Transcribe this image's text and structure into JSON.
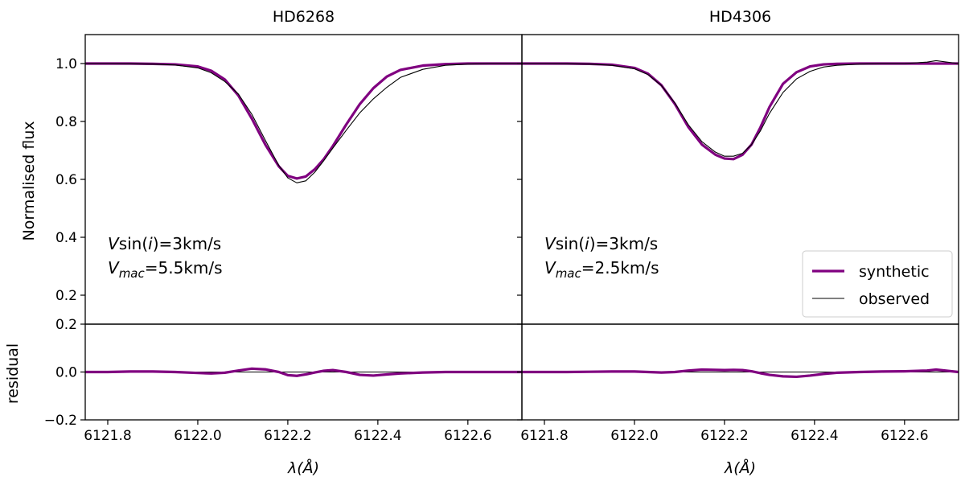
{
  "chart_data": {
    "type": "line",
    "xlabel_main": "λ(",
    "xlabel_unit": "Å",
    "xlabel_close": ")",
    "ylabel_top": "Normalised flux",
    "ylabel_bottom": "residual",
    "xlim": [
      6121.75,
      6122.72
    ],
    "ylim_top": [
      0.1,
      1.1
    ],
    "ylim_bottom": [
      -0.2,
      0.2
    ],
    "xticks": [
      6121.8,
      6122.0,
      6122.2,
      6122.4,
      6122.6
    ],
    "xtick_labels": [
      "6121.8",
      "6122.0",
      "6122.2",
      "6122.4",
      "6122.6"
    ],
    "yticks_top": [
      0.2,
      0.4,
      0.6,
      0.8,
      1.0
    ],
    "ytick_labels_top": [
      "0.2",
      "0.4",
      "0.6",
      "0.8",
      "1.0"
    ],
    "yticks_bottom": [
      -0.2,
      0.0,
      0.2
    ],
    "ytick_labels_bottom": [
      "−0.2",
      "0.0",
      "0.2"
    ],
    "legend": {
      "position": "lower-right",
      "entries": [
        {
          "name": "synthetic",
          "color": "#800080"
        },
        {
          "name": "observed",
          "color": "#000000"
        }
      ]
    },
    "panels": [
      {
        "title": "HD6268",
        "annotation": {
          "v": "V",
          "sin_pre": "sin(",
          "i": "i",
          "sin_post": ")=3km/s",
          "vmac": "V",
          "mac": "mac",
          "vmac_val": "=5.5km/s"
        },
        "x": [
          6121.75,
          6121.8,
          6121.85,
          6121.9,
          6121.95,
          6122.0,
          6122.03,
          6122.06,
          6122.09,
          6122.12,
          6122.15,
          6122.18,
          6122.2,
          6122.22,
          6122.24,
          6122.26,
          6122.28,
          6122.3,
          6122.33,
          6122.36,
          6122.39,
          6122.42,
          6122.45,
          6122.5,
          6122.55,
          6122.6,
          6122.65,
          6122.72
        ],
        "synthetic": [
          1.0,
          1.0,
          1.0,
          0.999,
          0.997,
          0.99,
          0.975,
          0.945,
          0.89,
          0.81,
          0.72,
          0.645,
          0.612,
          0.603,
          0.61,
          0.635,
          0.67,
          0.715,
          0.79,
          0.86,
          0.915,
          0.955,
          0.978,
          0.993,
          0.998,
          1.0,
          1.0,
          1.0
        ],
        "observed": [
          1.0,
          1.0,
          0.999,
          0.998,
          0.995,
          0.985,
          0.968,
          0.938,
          0.895,
          0.825,
          0.735,
          0.648,
          0.605,
          0.588,
          0.595,
          0.625,
          0.665,
          0.708,
          0.77,
          0.83,
          0.878,
          0.918,
          0.952,
          0.98,
          0.994,
          0.998,
          1.0,
          1.0
        ],
        "residual": [
          0.0,
          0.0,
          0.002,
          0.002,
          0.0,
          -0.004,
          -0.006,
          -0.003,
          0.006,
          0.014,
          0.011,
          0.0,
          -0.013,
          -0.016,
          -0.01,
          -0.002,
          0.005,
          0.008,
          0.0,
          -0.012,
          -0.015,
          -0.01,
          -0.006,
          -0.002,
          0.0,
          0.0,
          0.0,
          0.0
        ]
      },
      {
        "title": "HD4306",
        "annotation": {
          "v": "V",
          "sin_pre": "sin(",
          "i": "i",
          "sin_post": ")=3km/s",
          "vmac": "V",
          "mac": "mac",
          "vmac_val": "=2.5km/s"
        },
        "x": [
          6121.75,
          6121.8,
          6121.85,
          6121.9,
          6121.95,
          6122.0,
          6122.03,
          6122.06,
          6122.09,
          6122.12,
          6122.15,
          6122.18,
          6122.2,
          6122.22,
          6122.24,
          6122.26,
          6122.28,
          6122.3,
          6122.33,
          6122.36,
          6122.39,
          6122.42,
          6122.45,
          6122.5,
          6122.55,
          6122.6,
          6122.65,
          6122.67,
          6122.72
        ],
        "synthetic": [
          1.0,
          1.0,
          1.0,
          0.999,
          0.996,
          0.985,
          0.965,
          0.925,
          0.86,
          0.78,
          0.72,
          0.685,
          0.672,
          0.67,
          0.685,
          0.72,
          0.78,
          0.85,
          0.93,
          0.97,
          0.99,
          0.997,
          0.999,
          1.0,
          1.0,
          1.0,
          1.0,
          1.0,
          1.0
        ],
        "observed": [
          1.0,
          1.0,
          0.999,
          0.998,
          0.994,
          0.982,
          0.962,
          0.924,
          0.863,
          0.788,
          0.73,
          0.694,
          0.68,
          0.68,
          0.69,
          0.72,
          0.768,
          0.828,
          0.9,
          0.947,
          0.973,
          0.988,
          0.994,
          0.998,
          1.0,
          1.0,
          1.005,
          1.01,
          1.0
        ],
        "residual": [
          0.0,
          0.0,
          0.0,
          0.001,
          0.002,
          0.002,
          0.0,
          -0.002,
          0.0,
          0.006,
          0.01,
          0.009,
          0.008,
          0.009,
          0.008,
          0.003,
          -0.005,
          -0.012,
          -0.018,
          -0.02,
          -0.015,
          -0.008,
          -0.003,
          0.0,
          0.002,
          0.003,
          0.006,
          0.01,
          0.0
        ]
      }
    ]
  }
}
